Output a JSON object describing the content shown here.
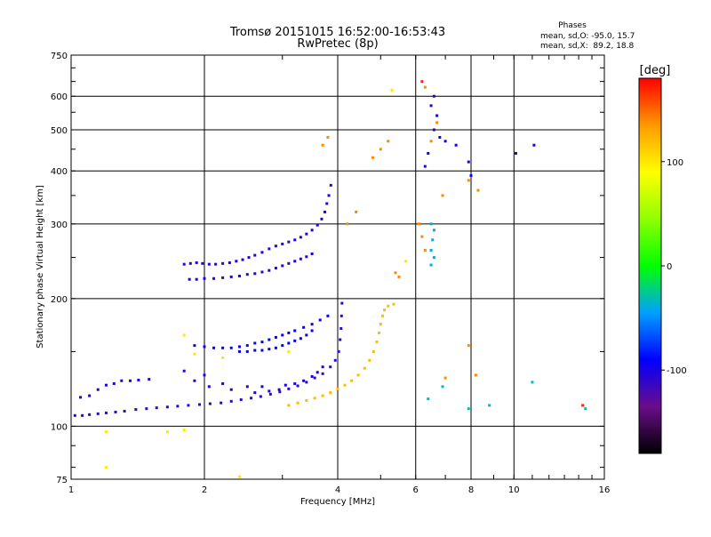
{
  "chart_data": {
    "type": "scatter",
    "title": "Tromsø 20151015 16:52:00-16:53:43",
    "subtitle": "RwPretec (8p)",
    "xlabel": "Frequency [MHz]",
    "ylabel": "Stationary phase Virtual Height [km]",
    "x_scale": "log",
    "y_scale": "log",
    "xlim": [
      1,
      16
    ],
    "ylim": [
      75,
      750
    ],
    "x_ticks": [
      {
        "value": 1,
        "label": "1"
      },
      {
        "value": 2,
        "label": "2"
      },
      {
        "value": 4,
        "label": "4"
      },
      {
        "value": 6,
        "label": "6"
      },
      {
        "value": 8,
        "label": "8"
      },
      {
        "value": 10,
        "label": "10"
      },
      {
        "value": 16,
        "label": "16"
      }
    ],
    "y_ticks": [
      {
        "value": 75,
        "label": "75"
      },
      {
        "value": 100,
        "label": "100"
      },
      {
        "value": 200,
        "label": "200"
      },
      {
        "value": 300,
        "label": "300"
      },
      {
        "value": 400,
        "label": "400"
      },
      {
        "value": 500,
        "label": "500"
      },
      {
        "value": 600,
        "label": "600"
      },
      {
        "value": 750,
        "label": "750"
      }
    ],
    "grid": true,
    "stats": {
      "title": "Phases",
      "line_o": "mean, sd,O: -95.0, 15.7",
      "line_x": "mean, sd,X:  89.2, 18.8"
    },
    "colorbar": {
      "label": "[deg]",
      "range": [
        -180,
        180
      ],
      "ticks": [
        {
          "value": 100,
          "label": "100"
        },
        {
          "value": 0,
          "label": "0"
        },
        {
          "value": -100,
          "label": "-100"
        }
      ]
    },
    "traces": [
      {
        "name": "",
        "phase": -110,
        "points": [
          [
            1.02,
            106
          ],
          [
            1.06,
            106
          ],
          [
            1.1,
            106.5
          ],
          [
            1.15,
            107
          ],
          [
            1.2,
            107.5
          ],
          [
            1.26,
            108
          ],
          [
            1.32,
            108.5
          ],
          [
            1.4,
            109.5
          ],
          [
            1.48,
            110
          ],
          [
            1.56,
            110.5
          ],
          [
            1.65,
            111
          ],
          [
            1.74,
            111.5
          ],
          [
            1.84,
            112
          ],
          [
            1.95,
            112.5
          ],
          [
            2.06,
            113
          ],
          [
            2.18,
            113.5
          ],
          [
            2.3,
            114.5
          ],
          [
            2.42,
            115.5
          ],
          [
            2.55,
            116.5
          ],
          [
            2.68,
            117.5
          ],
          [
            2.82,
            119
          ],
          [
            2.96,
            120.5
          ],
          [
            3.1,
            122.5
          ],
          [
            3.25,
            124.5
          ],
          [
            3.4,
            127
          ],
          [
            3.55,
            130
          ],
          [
            3.7,
            133
          ],
          [
            3.85,
            138
          ],
          [
            3.95,
            143
          ],
          [
            4.02,
            150
          ],
          [
            4.05,
            160
          ],
          [
            4.07,
            170
          ],
          [
            4.08,
            182
          ],
          [
            4.09,
            195
          ]
        ]
      },
      {
        "name": "",
        "phase": 120,
        "points": [
          [
            3.1,
            112
          ],
          [
            3.25,
            113.5
          ],
          [
            3.4,
            115
          ],
          [
            3.55,
            116.5
          ],
          [
            3.7,
            118
          ],
          [
            3.85,
            120
          ],
          [
            4.0,
            122.5
          ],
          [
            4.15,
            125
          ],
          [
            4.3,
            128
          ],
          [
            4.45,
            132
          ],
          [
            4.6,
            137
          ],
          [
            4.72,
            143
          ],
          [
            4.82,
            150
          ],
          [
            4.9,
            158
          ],
          [
            4.96,
            166
          ],
          [
            5.0,
            174
          ],
          [
            5.05,
            182
          ],
          [
            5.1,
            188
          ],
          [
            5.2,
            192
          ],
          [
            5.35,
            194
          ]
        ]
      },
      {
        "name": "",
        "phase": -100,
        "points": [
          [
            1.05,
            117
          ],
          [
            1.1,
            118
          ],
          [
            1.15,
            122
          ],
          [
            1.2,
            125
          ],
          [
            1.25,
            126
          ],
          [
            1.3,
            128
          ],
          [
            1.36,
            128
          ],
          [
            1.42,
            128.5
          ],
          [
            1.5,
            129
          ]
        ]
      },
      {
        "name": "",
        "phase": -105,
        "points": [
          [
            1.8,
            241
          ],
          [
            1.86,
            242
          ],
          [
            1.92,
            243
          ],
          [
            1.98,
            242
          ],
          [
            2.05,
            241
          ],
          [
            2.12,
            241
          ],
          [
            2.2,
            242
          ],
          [
            2.28,
            243
          ],
          [
            2.36,
            245
          ],
          [
            2.44,
            247
          ],
          [
            2.52,
            250
          ],
          [
            2.6,
            253
          ],
          [
            2.7,
            257
          ],
          [
            2.8,
            262
          ],
          [
            2.9,
            266
          ],
          [
            3.0,
            269
          ],
          [
            3.1,
            272
          ],
          [
            3.2,
            275
          ],
          [
            3.3,
            279
          ],
          [
            3.4,
            284
          ],
          [
            3.5,
            290
          ],
          [
            3.6,
            298
          ],
          [
            3.68,
            308
          ],
          [
            3.74,
            320
          ],
          [
            3.78,
            335
          ],
          [
            3.82,
            350
          ],
          [
            3.86,
            370
          ]
        ]
      },
      {
        "name": "",
        "phase": -105,
        "points": [
          [
            1.85,
            222
          ],
          [
            1.92,
            222
          ],
          [
            2.0,
            223
          ],
          [
            2.1,
            223
          ],
          [
            2.2,
            224
          ],
          [
            2.3,
            225
          ],
          [
            2.4,
            226
          ],
          [
            2.5,
            228
          ],
          [
            2.6,
            229
          ],
          [
            2.7,
            231
          ],
          [
            2.8,
            233
          ],
          [
            2.9,
            236
          ],
          [
            3.0,
            239
          ],
          [
            3.1,
            242
          ],
          [
            3.2,
            245
          ],
          [
            3.3,
            248
          ],
          [
            3.4,
            251
          ],
          [
            3.5,
            255
          ]
        ]
      },
      {
        "name": "",
        "phase": -95,
        "points": [
          [
            1.9,
            155
          ],
          [
            2.0,
            154
          ],
          [
            2.1,
            153
          ],
          [
            2.2,
            153
          ],
          [
            2.3,
            153
          ],
          [
            2.4,
            154
          ],
          [
            2.5,
            155
          ],
          [
            2.6,
            157
          ],
          [
            2.7,
            158
          ],
          [
            2.8,
            160
          ],
          [
            2.9,
            162
          ],
          [
            3.0,
            164
          ],
          [
            3.1,
            166
          ],
          [
            3.2,
            168
          ],
          [
            3.35,
            171
          ],
          [
            3.5,
            174
          ],
          [
            3.65,
            178
          ],
          [
            3.8,
            182
          ]
        ]
      },
      {
        "name": "",
        "phase": -90,
        "points": [
          [
            2.4,
            150
          ],
          [
            2.5,
            150
          ],
          [
            2.6,
            151
          ],
          [
            2.7,
            151
          ],
          [
            2.8,
            152
          ],
          [
            2.9,
            153
          ],
          [
            3.0,
            155
          ],
          [
            3.1,
            157
          ],
          [
            3.2,
            159
          ],
          [
            3.3,
            161
          ],
          [
            3.4,
            164
          ],
          [
            3.5,
            168
          ]
        ]
      },
      {
        "name": "",
        "phase": -100,
        "points": [
          [
            1.8,
            135
          ],
          [
            1.9,
            128
          ],
          [
            2.0,
            132
          ],
          [
            2.05,
            124
          ],
          [
            2.2,
            126
          ],
          [
            2.3,
            122
          ],
          [
            2.5,
            124
          ],
          [
            2.6,
            120
          ],
          [
            2.7,
            124
          ],
          [
            2.8,
            121
          ],
          [
            2.95,
            122
          ],
          [
            3.05,
            125
          ],
          [
            3.2,
            126
          ],
          [
            3.35,
            128
          ],
          [
            3.5,
            131
          ],
          [
            3.6,
            134
          ],
          [
            3.7,
            138
          ]
        ]
      },
      {
        "name": "",
        "phase": -40,
        "points": [
          [
            6.5,
            300
          ],
          [
            6.6,
            290
          ],
          [
            6.55,
            275
          ],
          [
            6.5,
            260
          ],
          [
            6.6,
            250
          ],
          [
            6.5,
            240
          ]
        ]
      },
      {
        "name": "",
        "phase": 140,
        "points": [
          [
            6.3,
            630
          ],
          [
            6.7,
            520
          ],
          [
            6.5,
            470
          ],
          [
            6.9,
            350
          ],
          [
            7.9,
            380
          ],
          [
            8.3,
            360
          ],
          [
            5.2,
            470
          ],
          [
            5.0,
            450
          ],
          [
            4.8,
            430
          ],
          [
            4.2,
            300
          ],
          [
            4.4,
            320
          ],
          [
            6.1,
            300
          ],
          [
            6.2,
            280
          ],
          [
            6.3,
            260
          ],
          [
            5.4,
            230
          ],
          [
            5.5,
            225
          ],
          [
            3.8,
            480
          ],
          [
            3.7,
            460
          ],
          [
            7.9,
            155
          ],
          [
            8.2,
            132
          ],
          [
            7.0,
            130
          ]
        ]
      },
      {
        "name": "",
        "phase": -100,
        "points": [
          [
            6.6,
            600
          ],
          [
            6.5,
            570
          ],
          [
            6.7,
            540
          ],
          [
            6.6,
            500
          ],
          [
            6.8,
            480
          ],
          [
            7.0,
            470
          ],
          [
            7.4,
            460
          ],
          [
            7.9,
            420
          ],
          [
            10.1,
            440
          ],
          [
            11.1,
            460
          ],
          [
            8.0,
            390
          ],
          [
            6.4,
            440
          ],
          [
            6.3,
            410
          ]
        ]
      },
      {
        "name": "",
        "phase": 100,
        "points": [
          [
            1.2,
            97
          ],
          [
            1.65,
            97
          ],
          [
            1.8,
            98
          ],
          [
            1.2,
            80
          ],
          [
            2.4,
            76
          ],
          [
            1.8,
            164
          ],
          [
            2.2,
            145
          ],
          [
            1.9,
            148
          ],
          [
            3.1,
            150
          ],
          [
            5.3,
            620
          ],
          [
            5.7,
            245
          ]
        ]
      },
      {
        "name": "",
        "phase": -30,
        "points": [
          [
            6.4,
            116
          ],
          [
            6.9,
            124
          ],
          [
            8.8,
            112
          ],
          [
            11.0,
            127
          ],
          [
            14.5,
            110
          ],
          [
            7.9,
            110
          ]
        ]
      },
      {
        "name": "",
        "phase": 170,
        "points": [
          [
            6.2,
            650
          ],
          [
            14.3,
            112
          ]
        ]
      }
    ]
  }
}
